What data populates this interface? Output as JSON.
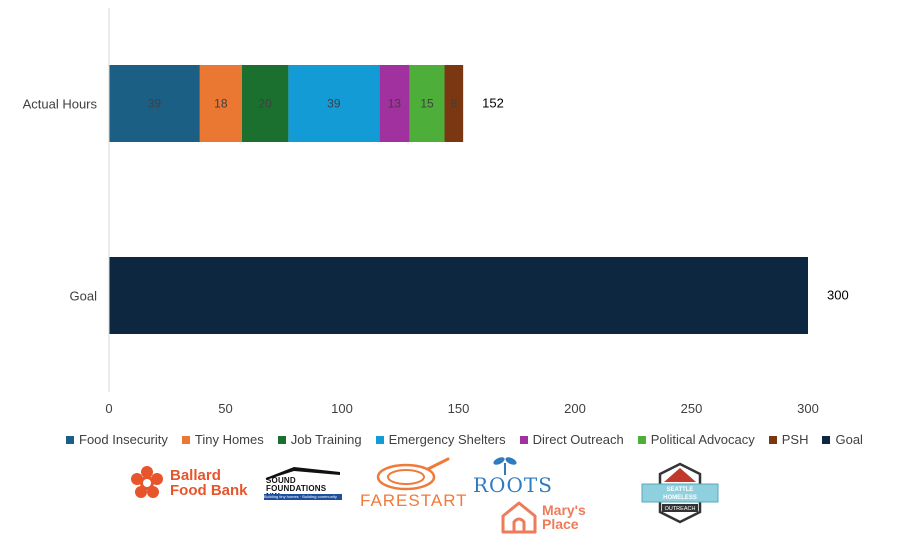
{
  "chart_data": {
    "type": "bar",
    "orientation": "horizontal",
    "stacked": true,
    "categories": [
      "Actual Hours",
      "Goal"
    ],
    "series": [
      {
        "name": "Food Insecurity",
        "color": "#1c5f85",
        "values": [
          39,
          0
        ]
      },
      {
        "name": "Tiny Homes",
        "color": "#ea7833",
        "values": [
          18,
          0
        ]
      },
      {
        "name": "Job Training",
        "color": "#1b7030",
        "values": [
          20,
          0
        ]
      },
      {
        "name": "Emergency Shelters",
        "color": "#139bd6",
        "values": [
          39,
          0
        ]
      },
      {
        "name": "Direct Outreach",
        "color": "#a1319f",
        "values": [
          13,
          0
        ]
      },
      {
        "name": "Political Advocacy",
        "color": "#4daf3a",
        "values": [
          15,
          0
        ]
      },
      {
        "name": "PSH",
        "color": "#7b3612",
        "values": [
          8,
          0
        ]
      },
      {
        "name": "Goal",
        "color": "#0e2741",
        "values": [
          0,
          300
        ]
      }
    ],
    "segment_labels": [
      [
        "39",
        "18",
        "20",
        "39",
        "13",
        "15",
        "8"
      ],
      [
        "300"
      ]
    ],
    "totals": [
      "152",
      "300"
    ],
    "xlim": [
      0,
      300
    ],
    "xticks": [
      "0",
      "50",
      "100",
      "150",
      "200",
      "250",
      "300"
    ],
    "title": "",
    "xlabel": "",
    "ylabel": "",
    "grid": false,
    "legend_position": "bottom"
  },
  "logos": {
    "ballard": {
      "line1": "Ballard",
      "line2": "Food Bank",
      "color": "#e8542b"
    },
    "sound": {
      "line1": "SOUND",
      "line2": "FOUNDATIONS NW",
      "tagline": "Building tiny homes · Building community"
    },
    "farestart": {
      "text": "FARESTART",
      "color": "#f07a3a"
    },
    "roots": {
      "text": "ROOTS",
      "color": "#2f7bc0"
    },
    "marys": {
      "line1": "Mary's",
      "line2": "Place",
      "color": "#ef7b5a"
    },
    "shoutreach": {
      "line1": "SEATTLE",
      "line2": "HOMELESS",
      "line3": "OUTREACH"
    }
  }
}
